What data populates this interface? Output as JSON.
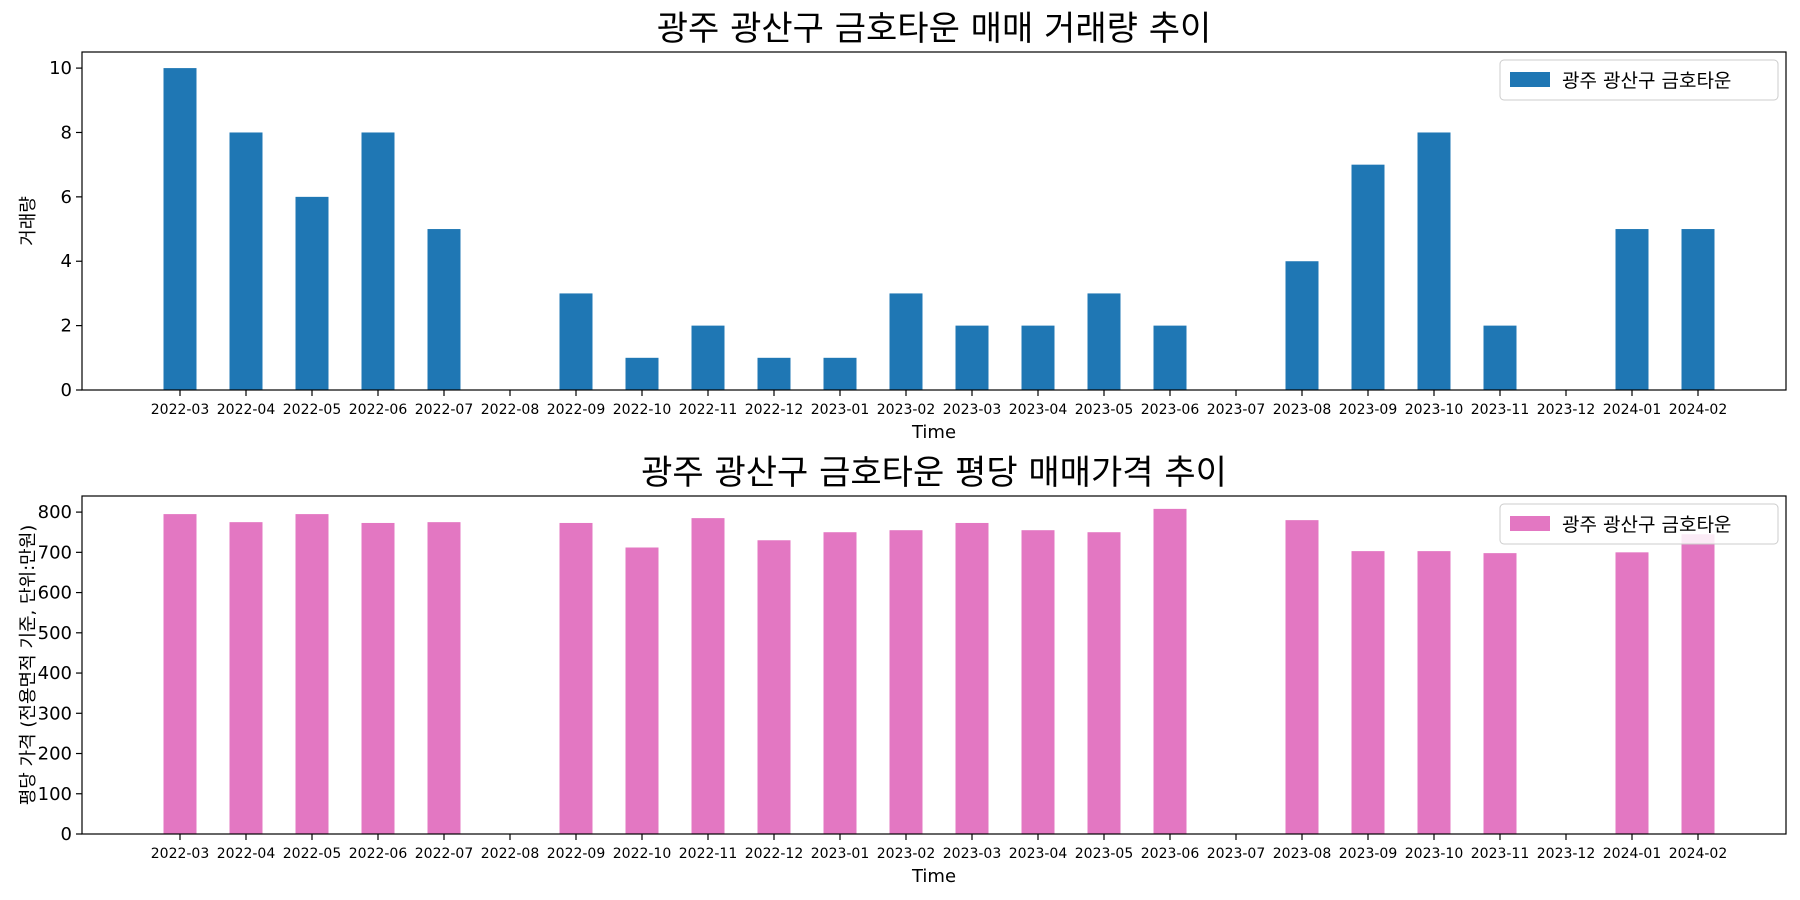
{
  "chart_data": [
    {
      "type": "bar",
      "title": "광주 광산구 금호타운 매매 거래량 추이",
      "xlabel": "Time",
      "ylabel": "거래량",
      "ylim": [
        0,
        10.5
      ],
      "yticks": [
        0,
        2,
        4,
        6,
        8,
        10
      ],
      "legend_position": "top-right",
      "grid": false,
      "categories": [
        "2022-03",
        "2022-04",
        "2022-05",
        "2022-06",
        "2022-07",
        "2022-08",
        "2022-09",
        "2022-10",
        "2022-11",
        "2022-12",
        "2023-01",
        "2023-02",
        "2023-03",
        "2023-04",
        "2023-05",
        "2023-06",
        "2023-07",
        "2023-08",
        "2023-09",
        "2023-10",
        "2023-11",
        "2023-12",
        "2024-01",
        "2024-02"
      ],
      "series": [
        {
          "name": "광주 광산구 금호타운",
          "color": "#1f77b4",
          "values": [
            10,
            8,
            6,
            8,
            5,
            0,
            3,
            1,
            2,
            1,
            1,
            3,
            2,
            2,
            3,
            2,
            0,
            4,
            7,
            8,
            2,
            0,
            5,
            5
          ]
        }
      ]
    },
    {
      "type": "bar",
      "title": "광주 광산구 금호타운 평당 매매가격 추이",
      "xlabel": "Time",
      "ylabel": "평당 가격 (전용면적 기준, 단위:만원)",
      "ylim": [
        0,
        840
      ],
      "yticks": [
        0,
        100,
        200,
        300,
        400,
        500,
        600,
        700,
        800
      ],
      "legend_position": "top-right",
      "grid": false,
      "categories": [
        "2022-03",
        "2022-04",
        "2022-05",
        "2022-06",
        "2022-07",
        "2022-08",
        "2022-09",
        "2022-10",
        "2022-11",
        "2022-12",
        "2023-01",
        "2023-02",
        "2023-03",
        "2023-04",
        "2023-05",
        "2023-06",
        "2023-07",
        "2023-08",
        "2023-09",
        "2023-10",
        "2023-11",
        "2023-12",
        "2024-01",
        "2024-02"
      ],
      "series": [
        {
          "name": "광주 광산구 금호타운",
          "color": "#e377c2",
          "values": [
            795,
            775,
            795,
            773,
            775,
            null,
            773,
            712,
            785,
            730,
            750,
            755,
            773,
            755,
            750,
            808,
            null,
            780,
            703,
            703,
            698,
            null,
            700,
            745
          ]
        }
      ]
    }
  ]
}
